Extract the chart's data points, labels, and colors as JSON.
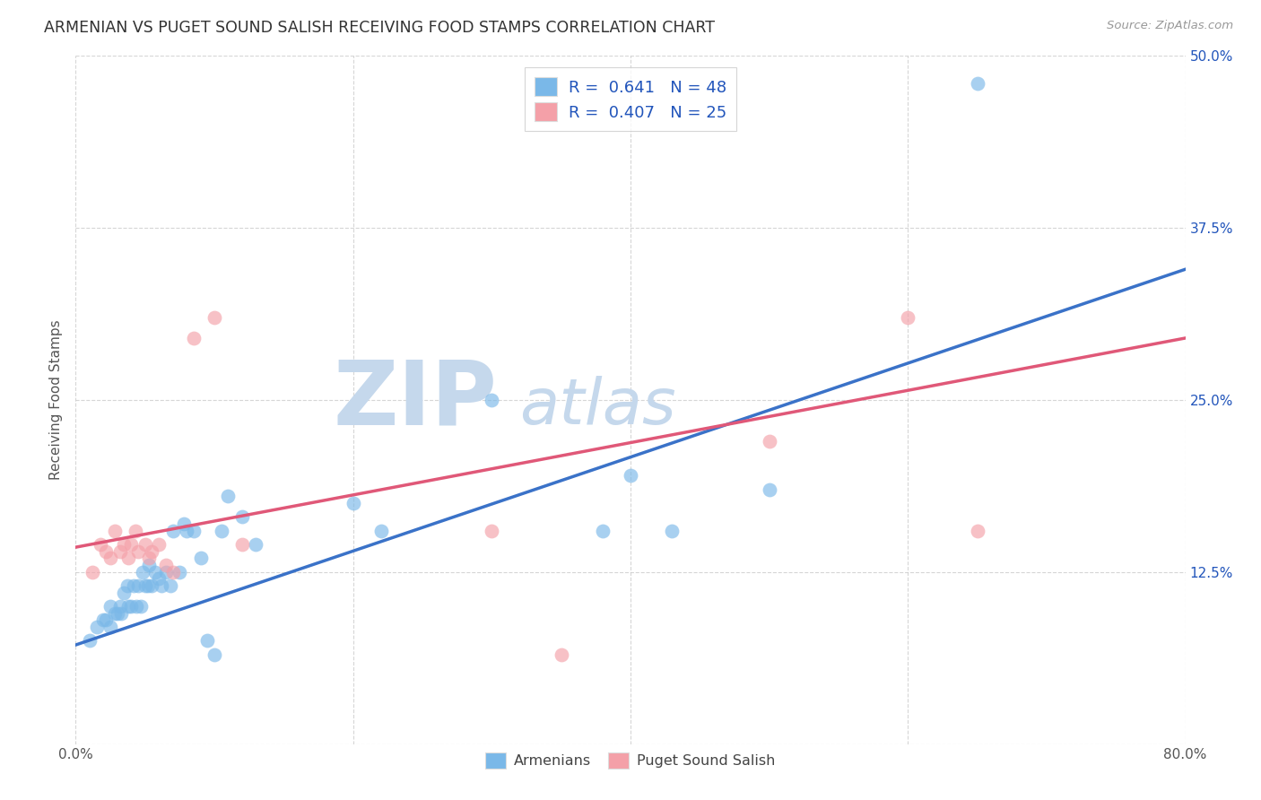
{
  "title": "ARMENIAN VS PUGET SOUND SALISH RECEIVING FOOD STAMPS CORRELATION CHART",
  "source": "Source: ZipAtlas.com",
  "ylabel": "Receiving Food Stamps",
  "xlim": [
    0.0,
    0.8
  ],
  "ylim": [
    0.0,
    0.5
  ],
  "armenian_R": 0.641,
  "armenian_N": 48,
  "salish_R": 0.407,
  "salish_N": 25,
  "blue_color": "#7ab8e8",
  "pink_color": "#f4a0a8",
  "blue_line_color": "#3a72c8",
  "pink_line_color": "#e05878",
  "watermark_zip_color": "#c5d8ec",
  "watermark_atlas_color": "#c5d8ec",
  "grid_color": "#cccccc",
  "title_color": "#333333",
  "legend_text_color": "#2255bb",
  "armenians_x": [
    0.01,
    0.015,
    0.02,
    0.022,
    0.025,
    0.025,
    0.028,
    0.03,
    0.032,
    0.033,
    0.035,
    0.037,
    0.038,
    0.04,
    0.042,
    0.044,
    0.045,
    0.047,
    0.048,
    0.05,
    0.052,
    0.053,
    0.055,
    0.057,
    0.06,
    0.062,
    0.065,
    0.068,
    0.07,
    0.075,
    0.078,
    0.08,
    0.085,
    0.09,
    0.095,
    0.1,
    0.105,
    0.11,
    0.12,
    0.13,
    0.2,
    0.22,
    0.3,
    0.38,
    0.4,
    0.43,
    0.5,
    0.65
  ],
  "armenians_y": [
    0.075,
    0.085,
    0.09,
    0.09,
    0.085,
    0.1,
    0.095,
    0.095,
    0.1,
    0.095,
    0.11,
    0.115,
    0.1,
    0.1,
    0.115,
    0.1,
    0.115,
    0.1,
    0.125,
    0.115,
    0.115,
    0.13,
    0.115,
    0.125,
    0.12,
    0.115,
    0.125,
    0.115,
    0.155,
    0.125,
    0.16,
    0.155,
    0.155,
    0.135,
    0.075,
    0.065,
    0.155,
    0.18,
    0.165,
    0.145,
    0.175,
    0.155,
    0.25,
    0.155,
    0.195,
    0.155,
    0.185,
    0.48
  ],
  "salish_x": [
    0.012,
    0.018,
    0.022,
    0.025,
    0.028,
    0.032,
    0.035,
    0.038,
    0.04,
    0.043,
    0.045,
    0.05,
    0.053,
    0.055,
    0.06,
    0.065,
    0.07,
    0.085,
    0.1,
    0.12,
    0.3,
    0.35,
    0.5,
    0.6,
    0.65
  ],
  "salish_y": [
    0.125,
    0.145,
    0.14,
    0.135,
    0.155,
    0.14,
    0.145,
    0.135,
    0.145,
    0.155,
    0.14,
    0.145,
    0.135,
    0.14,
    0.145,
    0.13,
    0.125,
    0.295,
    0.31,
    0.145,
    0.155,
    0.065,
    0.22,
    0.31,
    0.155
  ],
  "blue_line_x0": 0.0,
  "blue_line_y0": 0.072,
  "blue_line_x1": 0.8,
  "blue_line_y1": 0.345,
  "pink_line_x0": 0.0,
  "pink_line_y0": 0.143,
  "pink_line_x1": 0.8,
  "pink_line_y1": 0.295
}
